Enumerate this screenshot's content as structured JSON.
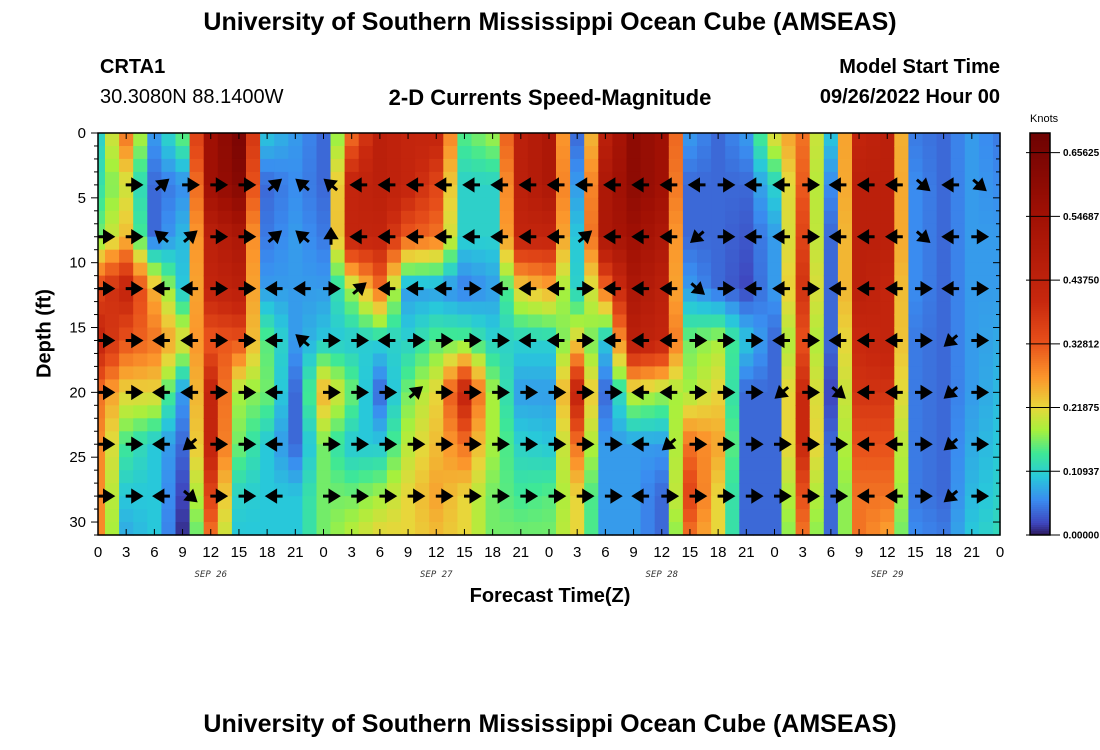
{
  "header": {
    "title": "University of Southern Mississippi Ocean Cube (AMSEAS)",
    "station": "CRTA1",
    "coords": "30.3080N  88.1400W",
    "model_start_label": "Model Start Time",
    "model_start_value": "09/26/2022 Hour 00",
    "bottom_title": "University of Southern Mississippi Ocean Cube (AMSEAS)"
  },
  "chart_data": {
    "type": "heatmap",
    "title": "2-D Currents Speed-Magnitude",
    "xlabel": "Forecast Time(Z)",
    "ylabel": "Depth (ft)",
    "xlim": [
      0,
      96
    ],
    "ylim": [
      31,
      0
    ],
    "x_tick_labels": [
      "0",
      "3",
      "6",
      "9",
      "12",
      "15",
      "18",
      "21",
      "0",
      "3",
      "6",
      "9",
      "12",
      "15",
      "18",
      "21",
      "0",
      "3",
      "6",
      "9",
      "12",
      "15",
      "18",
      "21",
      "0",
      "3",
      "6",
      "9",
      "12",
      "15",
      "18",
      "21",
      "0"
    ],
    "y_ticks": [
      0,
      5,
      10,
      15,
      20,
      25,
      30
    ],
    "date_labels": [
      {
        "label": "SEP 26",
        "hour": 12
      },
      {
        "label": "SEP 27",
        "hour": 36
      },
      {
        "label": "SEP 28",
        "hour": 60
      },
      {
        "label": "SEP 29",
        "hour": 84
      }
    ],
    "colorbar": {
      "label": "Knots",
      "range": [
        0,
        0.69
      ],
      "ticks": [
        0.65625,
        0.546875,
        0.4375,
        0.328125,
        0.21875,
        0.109375,
        0.0
      ],
      "tick_labels": [
        "0.65625",
        "0.54687",
        "0.43750",
        "0.32812",
        "0.21875",
        "0.10937",
        "0.00000"
      ]
    },
    "hours": [
      0,
      3,
      6,
      9,
      12,
      15,
      18,
      21,
      24,
      27,
      30,
      33,
      36,
      39,
      42,
      45,
      48,
      51,
      54,
      57,
      60,
      63,
      66,
      69,
      72,
      75,
      78,
      81,
      84,
      87,
      90,
      93,
      96
    ],
    "depths": [
      0,
      4,
      8,
      12,
      16,
      20,
      24,
      28,
      31
    ],
    "values": [
      [
        0.11,
        0.13,
        0.16,
        0.35,
        0.42,
        0.3,
        0.28,
        0.28,
        0.28
      ],
      [
        0.3,
        0.2,
        0.24,
        0.42,
        0.33,
        0.22,
        0.14,
        0.1,
        0.08
      ],
      [
        0.07,
        0.04,
        0.04,
        0.25,
        0.3,
        0.22,
        0.1,
        0.1,
        0.1
      ],
      [
        0.16,
        0.06,
        0.09,
        0.1,
        0.22,
        0.07,
        0.04,
        0.02,
        0.01
      ],
      [
        0.55,
        0.55,
        0.45,
        0.42,
        0.32,
        0.42,
        0.42,
        0.35,
        0.3
      ],
      [
        0.65,
        0.62,
        0.5,
        0.45,
        0.33,
        0.18,
        0.16,
        0.11,
        0.1
      ],
      [
        0.1,
        0.04,
        0.05,
        0.07,
        0.15,
        0.16,
        0.1,
        0.1,
        0.1
      ],
      [
        0.07,
        0.06,
        0.07,
        0.07,
        0.07,
        0.04,
        0.04,
        0.1,
        0.1
      ],
      [
        0.04,
        0.04,
        0.05,
        0.07,
        0.1,
        0.25,
        0.16,
        0.16,
        0.16
      ],
      [
        0.3,
        0.42,
        0.42,
        0.18,
        0.1,
        0.16,
        0.1,
        0.16,
        0.19
      ],
      [
        0.45,
        0.45,
        0.42,
        0.3,
        0.11,
        0.04,
        0.1,
        0.18,
        0.22
      ],
      [
        0.42,
        0.42,
        0.32,
        0.07,
        0.11,
        0.16,
        0.19,
        0.22,
        0.22
      ],
      [
        0.42,
        0.35,
        0.3,
        0.07,
        0.15,
        0.22,
        0.24,
        0.26,
        0.24
      ],
      [
        0.15,
        0.11,
        0.11,
        0.05,
        0.15,
        0.42,
        0.3,
        0.22,
        0.22
      ],
      [
        0.18,
        0.11,
        0.11,
        0.07,
        0.11,
        0.18,
        0.18,
        0.16,
        0.16
      ],
      [
        0.45,
        0.45,
        0.42,
        0.22,
        0.11,
        0.07,
        0.11,
        0.14,
        0.16
      ],
      [
        0.5,
        0.5,
        0.42,
        0.25,
        0.11,
        0.07,
        0.1,
        0.15,
        0.16
      ],
      [
        0.04,
        0.07,
        0.1,
        0.11,
        0.22,
        0.42,
        0.3,
        0.22,
        0.22
      ],
      [
        0.45,
        0.5,
        0.5,
        0.3,
        0.1,
        0.04,
        0.07,
        0.07,
        0.07
      ],
      [
        0.6,
        0.6,
        0.55,
        0.5,
        0.45,
        0.2,
        0.07,
        0.07,
        0.07
      ],
      [
        0.55,
        0.55,
        0.5,
        0.45,
        0.42,
        0.18,
        0.07,
        0.04,
        0.04
      ],
      [
        0.07,
        0.04,
        0.04,
        0.07,
        0.16,
        0.18,
        0.3,
        0.35,
        0.3
      ],
      [
        0.04,
        0.04,
        0.04,
        0.04,
        0.18,
        0.22,
        0.26,
        0.22,
        0.22
      ],
      [
        0.07,
        0.04,
        0.03,
        0.02,
        0.1,
        0.04,
        0.04,
        0.04,
        0.04
      ],
      [
        0.22,
        0.11,
        0.07,
        0.07,
        0.04,
        0.04,
        0.04,
        0.04,
        0.04
      ],
      [
        0.3,
        0.32,
        0.35,
        0.38,
        0.33,
        0.4,
        0.4,
        0.33,
        0.3
      ],
      [
        0.1,
        0.06,
        0.04,
        0.04,
        0.04,
        0.02,
        0.04,
        0.04,
        0.04
      ],
      [
        0.42,
        0.45,
        0.45,
        0.45,
        0.4,
        0.38,
        0.33,
        0.3,
        0.3
      ],
      [
        0.45,
        0.45,
        0.45,
        0.42,
        0.42,
        0.38,
        0.33,
        0.3,
        0.26
      ],
      [
        0.05,
        0.06,
        0.06,
        0.06,
        0.05,
        0.05,
        0.05,
        0.05,
        0.06
      ],
      [
        0.04,
        0.04,
        0.04,
        0.04,
        0.04,
        0.04,
        0.04,
        0.04,
        0.05
      ],
      [
        0.07,
        0.07,
        0.07,
        0.07,
        0.07,
        0.07,
        0.08,
        0.09,
        0.1
      ],
      [
        0.05,
        0.06,
        0.07,
        0.07,
        0.08,
        0.09,
        0.1,
        0.11,
        0.12
      ]
    ],
    "arrow_depths": [
      4,
      8,
      12,
      16,
      20,
      24,
      28
    ],
    "arrow_directions": [
      [
        "",
        "R",
        "NE",
        "R",
        "R",
        "R",
        "NE",
        "NW",
        "NW",
        "L",
        "L",
        "L",
        "L",
        "L",
        "L",
        "L",
        "L",
        "L",
        "L",
        "L",
        "L",
        "L",
        "R",
        "L",
        "L",
        "R",
        "L",
        "L",
        "L",
        "SE",
        "L",
        "SE"
      ],
      [
        "R",
        "R",
        "NW",
        "NE",
        "R",
        "R",
        "NE",
        "NW",
        "U",
        "L",
        "L",
        "L",
        "L",
        "L",
        "L",
        "L",
        "L",
        "NE",
        "L",
        "L",
        "L",
        "SW",
        "R",
        "L",
        "L",
        "R",
        "L",
        "L",
        "L",
        "SE",
        "L",
        "R"
      ],
      [
        "R",
        "R",
        "L",
        "L",
        "R",
        "R",
        "L",
        "L",
        "R",
        "NE",
        "L",
        "L",
        "L",
        "R",
        "L",
        "L",
        "L",
        "R",
        "L",
        "L",
        "L",
        "SE",
        "R",
        "L",
        "L",
        "R",
        "L",
        "L",
        "L",
        "R",
        "L",
        "R"
      ],
      [
        "R",
        "R",
        "L",
        "L",
        "R",
        "R",
        "L",
        "NW",
        "R",
        "R",
        "L",
        "R",
        "R",
        "R",
        "R",
        "L",
        "L",
        "R",
        "L",
        "L",
        "L",
        "R",
        "R",
        "R",
        "L",
        "R",
        "L",
        "L",
        "L",
        "R",
        "SW",
        "R"
      ],
      [
        "R",
        "R",
        "L",
        "L",
        "R",
        "R",
        "L",
        "",
        "R",
        "R",
        "R",
        "NE",
        "R",
        "R",
        "R",
        "R",
        "R",
        "R",
        "R",
        "L",
        "L",
        "R",
        "R",
        "R",
        "SW",
        "R",
        "SE",
        "L",
        "L",
        "R",
        "SW",
        "R"
      ],
      [
        "R",
        "R",
        "L",
        "SW",
        "R",
        "R",
        "L",
        "",
        "R",
        "R",
        "R",
        "R",
        "R",
        "R",
        "R",
        "R",
        "R",
        "R",
        "R",
        "L",
        "SW",
        "R",
        "R",
        "R",
        "R",
        "R",
        "R",
        "L",
        "L",
        "R",
        "SW",
        "R"
      ],
      [
        "R",
        "R",
        "L",
        "SE",
        "R",
        "R",
        "L",
        "",
        "R",
        "R",
        "R",
        "R",
        "R",
        "R",
        "R",
        "R",
        "R",
        "R",
        "R",
        "L",
        "R",
        "R",
        "R",
        "R",
        "R",
        "R",
        "R",
        "L",
        "L",
        "R",
        "SW",
        "R"
      ]
    ]
  }
}
